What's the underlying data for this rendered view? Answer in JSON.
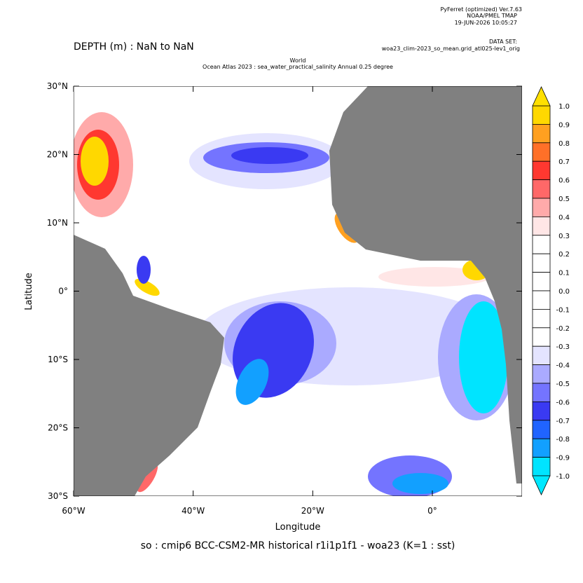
{
  "header": {
    "program": "PyFerret (optimized) Ver.7.63",
    "org": "NOAA/PMEL TMAP",
    "date": "19-JUN-2026 10:05:27",
    "dataset_label": "DATA SET:",
    "dataset": "woa23_clim-2023_so_mean.grid_atl025-lev1_orig"
  },
  "depth_label": "DEPTH (m) : NaN to NaN",
  "subtitle_1": "World",
  "subtitle_2": "Ocean Atlas 2023 : sea_water_practical_salinity Annual  0.25 degree",
  "map": {
    "xlim": [
      -60,
      15
    ],
    "ylim": [
      -30,
      30
    ],
    "xticks": [
      {
        "value": -60,
        "label": "60°W"
      },
      {
        "value": -40,
        "label": "40°W"
      },
      {
        "value": -20,
        "label": "20°W"
      },
      {
        "value": 0,
        "label": "0°"
      }
    ],
    "yticks": [
      {
        "value": 30,
        "label": "30°N"
      },
      {
        "value": 20,
        "label": "20°N"
      },
      {
        "value": 10,
        "label": "10°N"
      },
      {
        "value": 0,
        "label": "0°"
      },
      {
        "value": -10,
        "label": "10°S"
      },
      {
        "value": -20,
        "label": "20°S"
      },
      {
        "value": -30,
        "label": "30°S"
      }
    ],
    "x_label": "Longitude",
    "y_label": "Latitude",
    "land_color": "#808080"
  },
  "colorbar": {
    "levels": [
      {
        "value": 1,
        "label": "1.0"
      },
      0.9,
      0.8,
      0.7,
      0.6,
      0.5,
      0.4,
      0.3,
      0.2,
      0.1,
      {
        "value": 0,
        "label": "0.0"
      },
      -0.1,
      -0.2,
      -0.3,
      -0.4,
      -0.5,
      -0.6,
      -0.7,
      -0.8,
      -0.9,
      {
        "value": -1,
        "label": "-1.0"
      }
    ],
    "colors": [
      "#ffd800",
      "#ffa020",
      "#ff7028",
      "#ff3830",
      "#ff6868",
      "#ffaaaa",
      "#ffe6e6",
      "#ffffff",
      "#ffffff",
      "#ffffff",
      "#ffffff",
      "#ffffff",
      "#ffffff",
      "#e4e4ff",
      "#aaaaff",
      "#7474ff",
      "#3a3af2",
      "#2064ff",
      "#12a0ff",
      "#00e4ff"
    ],
    "over_color": "#ffe000",
    "under_color": "#00e8ff"
  },
  "caption": "so : cmip6 BCC-CSM2-MR historical r1i1p1f1 - woa23  (K=1 : sst)"
}
